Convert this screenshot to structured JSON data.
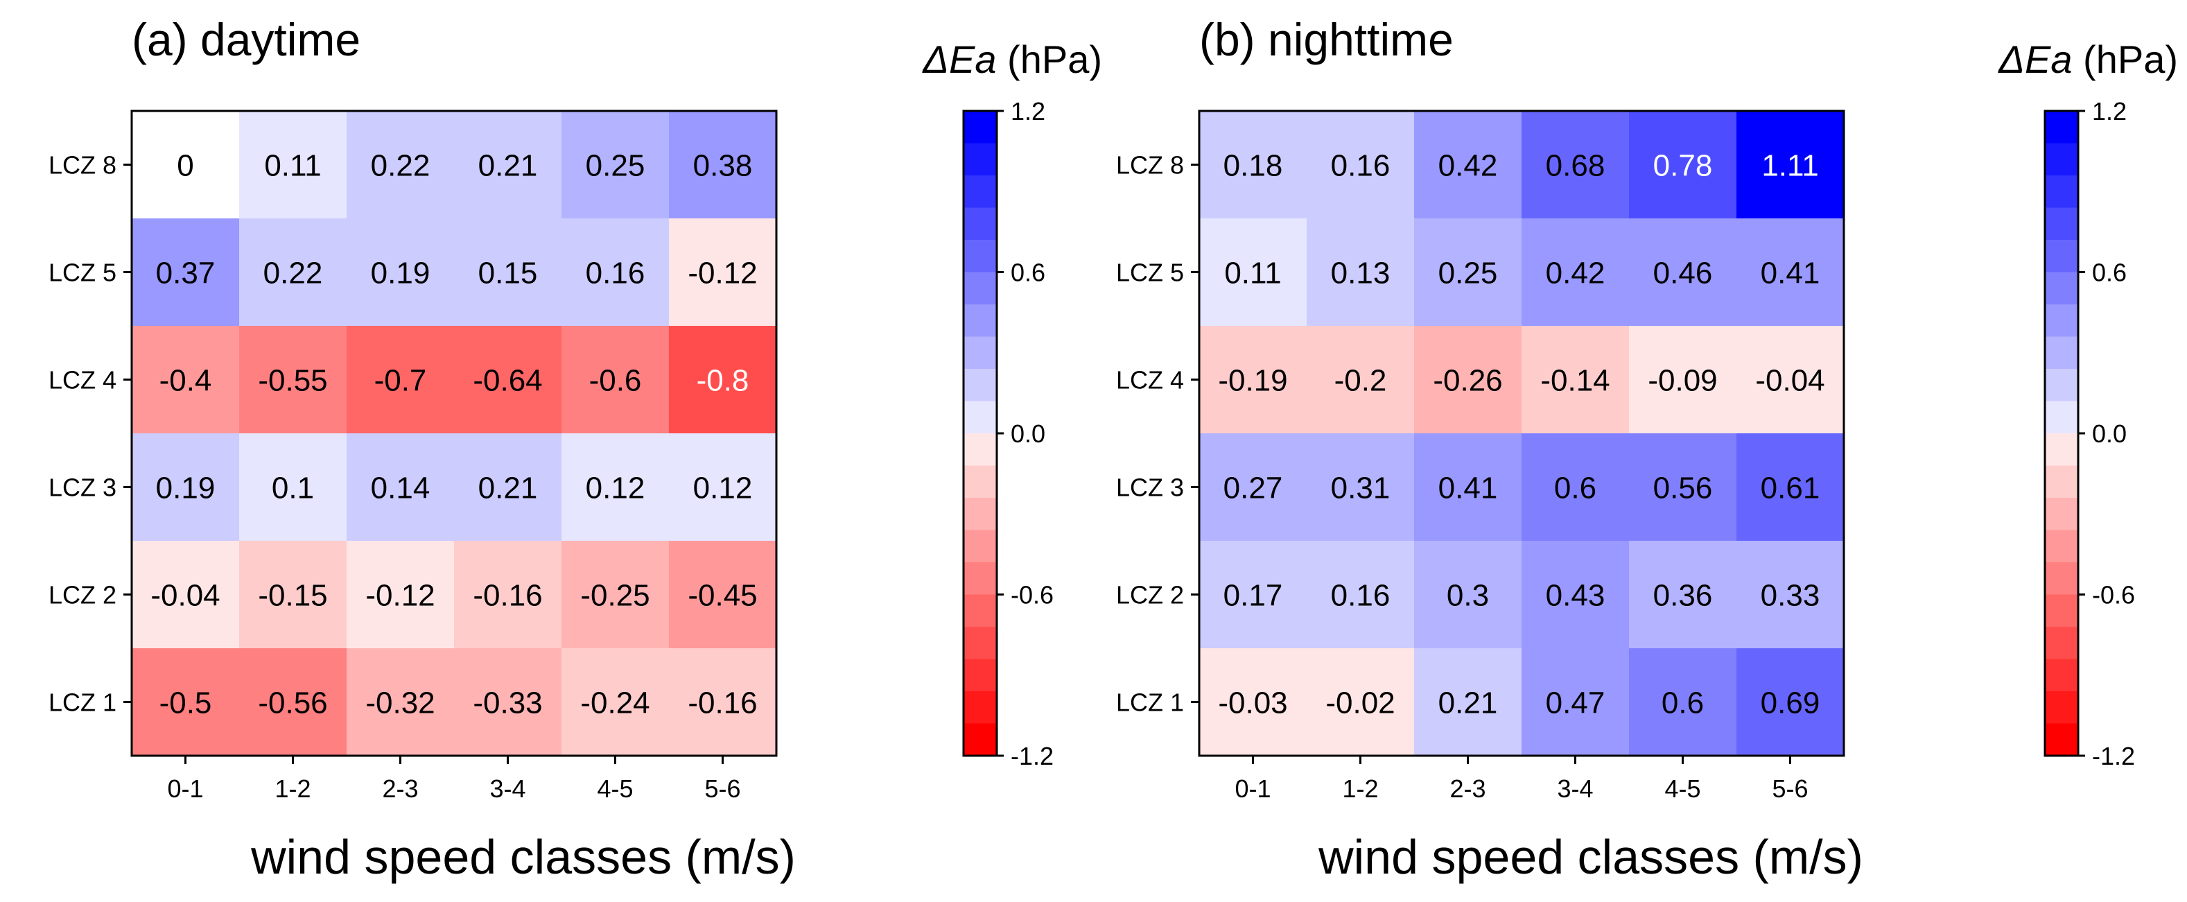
{
  "chart_data": [
    {
      "type": "heatmap",
      "panel_title": "(a) daytime",
      "colorbar_label_italic": "ΔEa",
      "colorbar_label_unit": "(hPa)",
      "xlabel": "wind speed classes (m/s)",
      "x": [
        "0-1",
        "1-2",
        "2-3",
        "3-4",
        "4-5",
        "5-6"
      ],
      "y": [
        "LCZ 8",
        "LCZ 5",
        "LCZ 4",
        "LCZ 3",
        "LCZ 2",
        "LCZ 1"
      ],
      "values": [
        [
          0,
          0.11,
          0.22,
          0.21,
          0.25,
          0.38
        ],
        [
          0.37,
          0.22,
          0.19,
          0.15,
          0.16,
          -0.12
        ],
        [
          -0.4,
          -0.55,
          -0.7,
          -0.64,
          -0.6,
          -0.8
        ],
        [
          0.19,
          0.1,
          0.14,
          0.21,
          0.12,
          0.12
        ],
        [
          -0.04,
          -0.15,
          -0.12,
          -0.16,
          -0.25,
          -0.45
        ],
        [
          -0.5,
          -0.56,
          -0.32,
          -0.33,
          -0.24,
          -0.16
        ]
      ],
      "vmin": -1.2,
      "vmax": 1.2,
      "colorbar_ticks": [
        "1.2",
        "0.6",
        "0.0",
        "-0.6",
        "-1.2"
      ],
      "colorbar_tick_values": [
        1.2,
        0.6,
        0.0,
        -0.6,
        -1.2
      ]
    },
    {
      "type": "heatmap",
      "panel_title": "(b) nighttime",
      "colorbar_label_italic": "ΔEa",
      "colorbar_label_unit": "(hPa)",
      "xlabel": "wind speed classes (m/s)",
      "x": [
        "0-1",
        "1-2",
        "2-3",
        "3-4",
        "4-5",
        "5-6"
      ],
      "y": [
        "LCZ 8",
        "LCZ 5",
        "LCZ 4",
        "LCZ 3",
        "LCZ 2",
        "LCZ 1"
      ],
      "values": [
        [
          0.18,
          0.16,
          0.42,
          0.68,
          0.78,
          1.11
        ],
        [
          0.11,
          0.13,
          0.25,
          0.42,
          0.46,
          0.41
        ],
        [
          -0.19,
          -0.2,
          -0.26,
          -0.14,
          -0.09,
          -0.04
        ],
        [
          0.27,
          0.31,
          0.41,
          0.6,
          0.56,
          0.61
        ],
        [
          0.17,
          0.16,
          0.3,
          0.43,
          0.36,
          0.33
        ],
        [
          -0.03,
          -0.02,
          0.21,
          0.47,
          0.6,
          0.69
        ]
      ],
      "vmin": -1.2,
      "vmax": 1.2,
      "colorbar_ticks": [
        "1.2",
        "0.6",
        "0.0",
        "-0.6",
        "-1.2"
      ],
      "colorbar_tick_values": [
        1.2,
        0.6,
        0.0,
        -0.6,
        -1.2
      ]
    }
  ]
}
